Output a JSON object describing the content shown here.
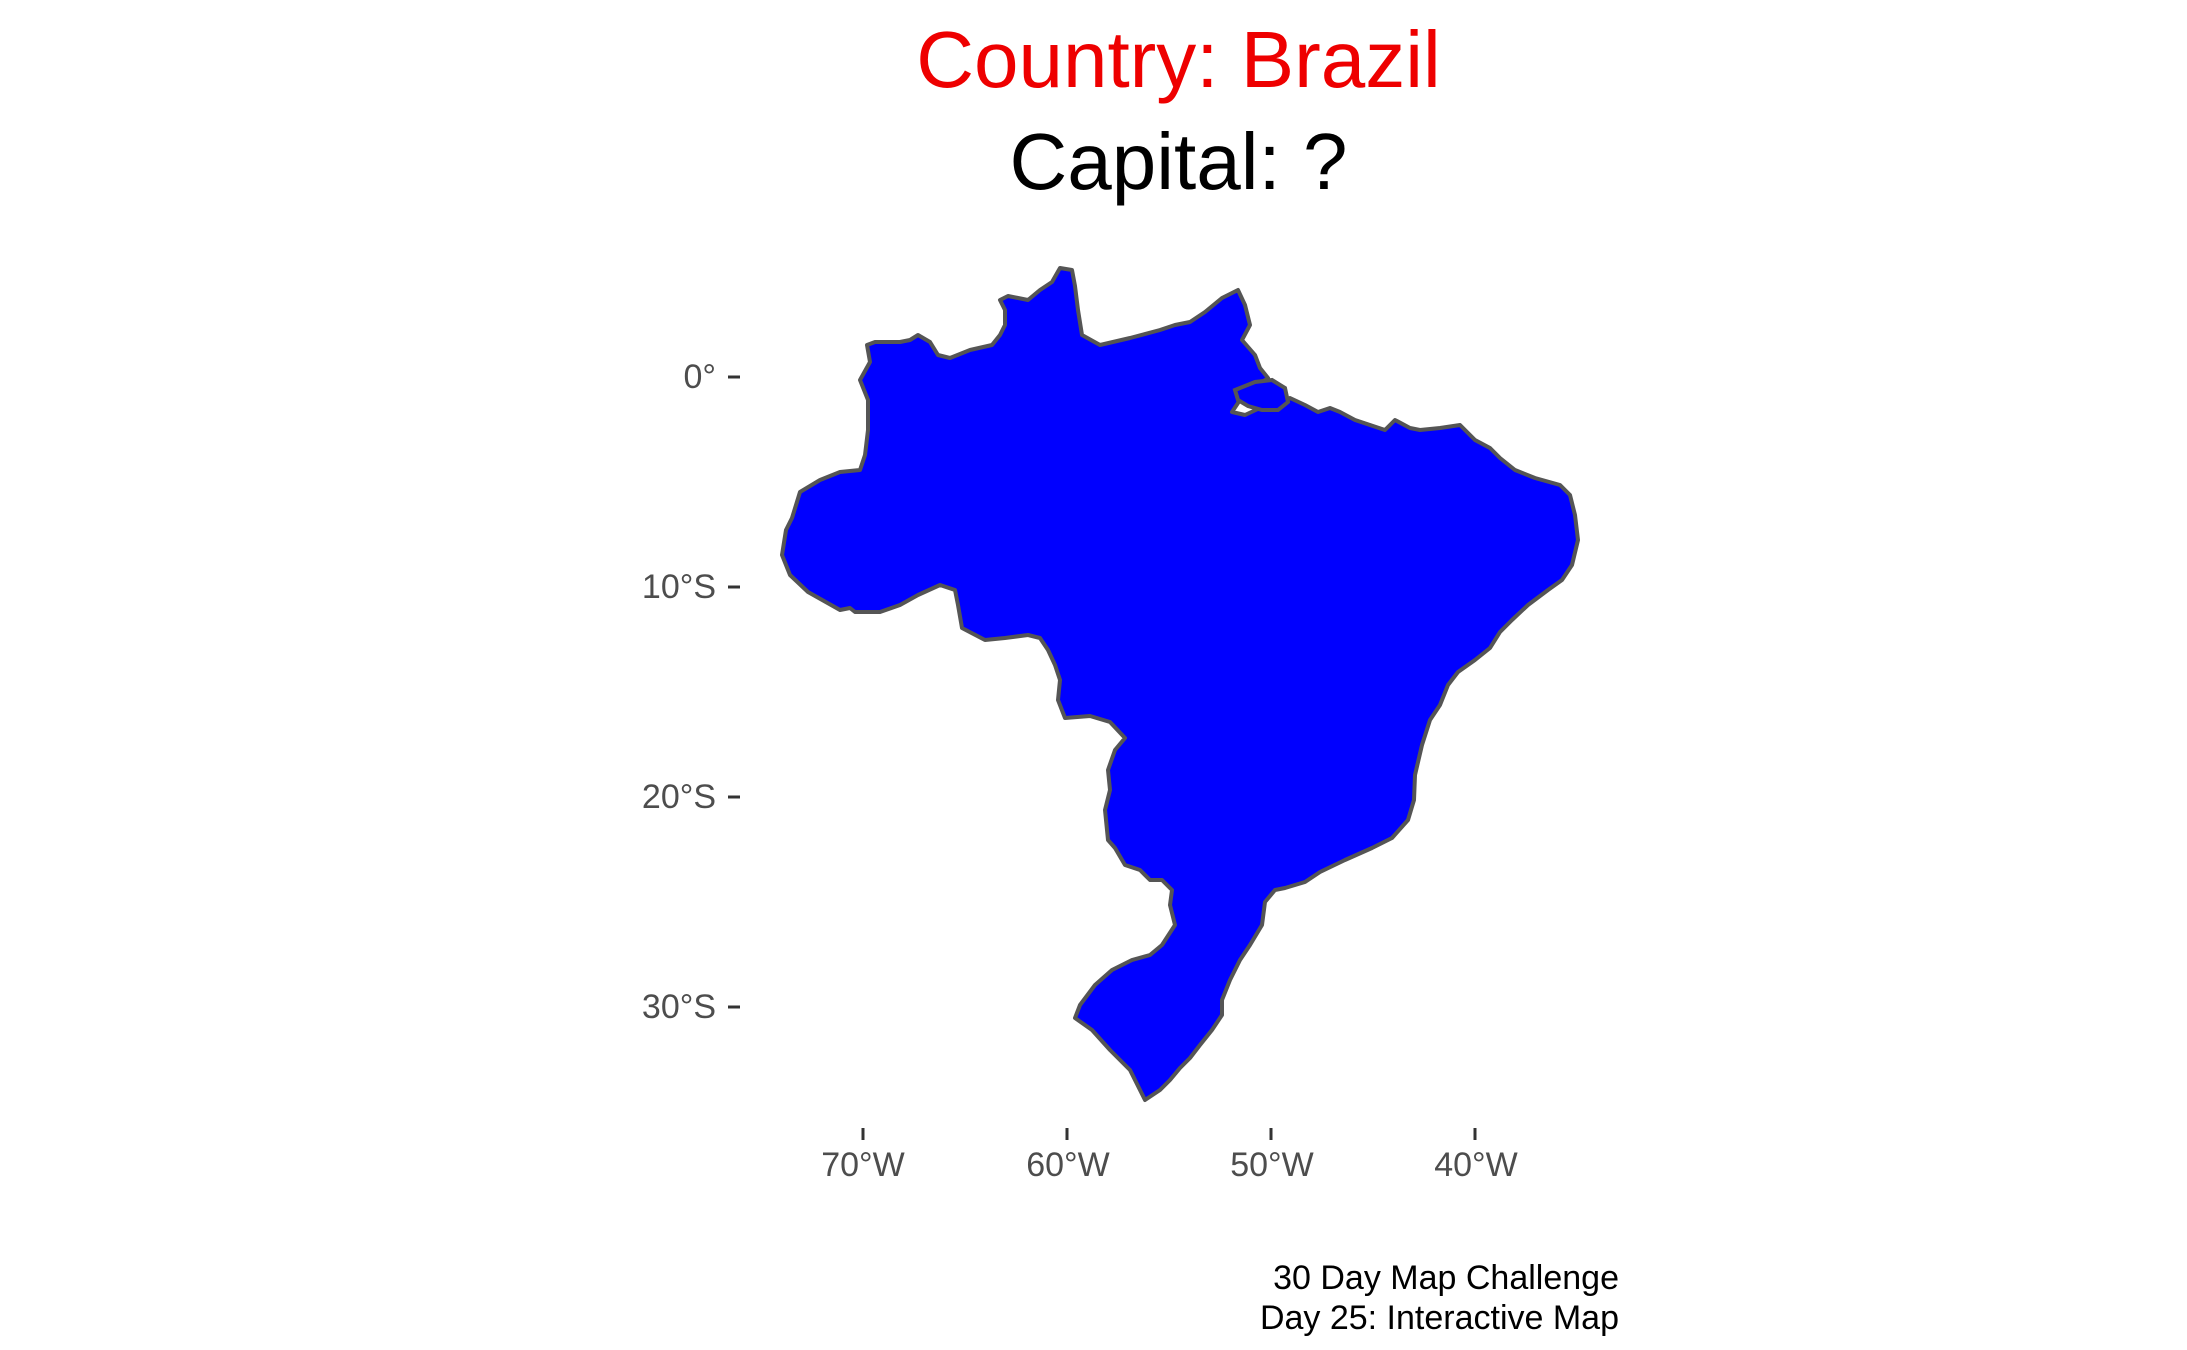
{
  "title": "Country: Brazil",
  "subtitle": "Capital: ?",
  "caption_line1": "30 Day Map Challenge",
  "caption_line2": "Day 25: Interactive Map",
  "colors": {
    "title": "#ee0000",
    "country_fill": "#0000ff",
    "country_stroke": "#555555",
    "axis_text": "#4d4d4d"
  },
  "map": {
    "country": "Brazil",
    "lon_range": [
      -74,
      -34
    ],
    "lat_range": [
      -34,
      5
    ],
    "y_axis": {
      "ticks": [
        {
          "value": 0,
          "label": "0°"
        },
        {
          "value": -10,
          "label": "10°S"
        },
        {
          "value": -20,
          "label": "20°S"
        },
        {
          "value": -30,
          "label": "30°S"
        }
      ]
    },
    "x_axis": {
      "ticks": [
        {
          "value": -70,
          "label": "70°W"
        },
        {
          "value": -60,
          "label": "60°W"
        },
        {
          "value": -50,
          "label": "50°W"
        },
        {
          "value": -40,
          "label": "40°W"
        }
      ]
    }
  }
}
